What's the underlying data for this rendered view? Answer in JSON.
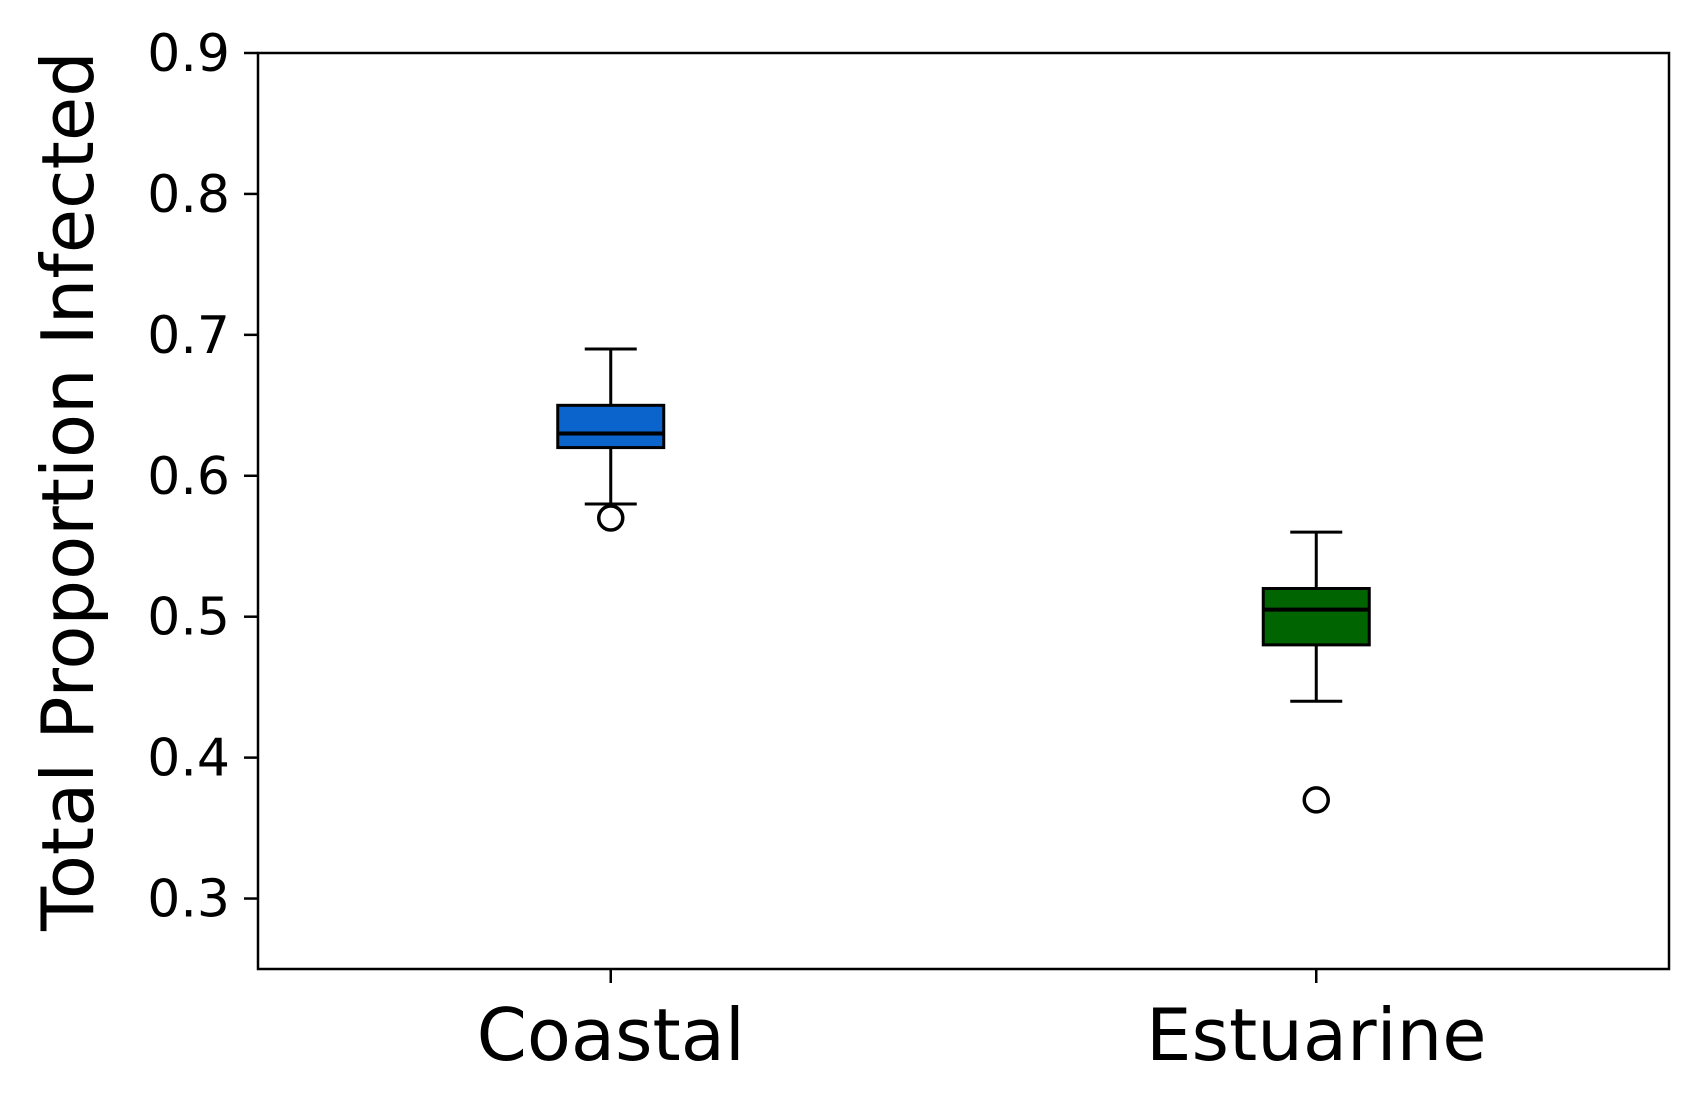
{
  "chart_data": {
    "type": "box",
    "title": "",
    "xlabel": "",
    "ylabel": "Total Proportion Infected",
    "ylim": [
      0.25,
      0.9
    ],
    "yticks": [
      0.3,
      0.4,
      0.5,
      0.6,
      0.7,
      0.8,
      0.9
    ],
    "ytick_labels": [
      "0.3",
      "0.4",
      "0.5",
      "0.6",
      "0.7",
      "0.8",
      "0.9"
    ],
    "grid": false,
    "categories": [
      "Coastal",
      "Estuarine"
    ],
    "boxes": [
      {
        "category": "Coastal",
        "whisker_low": 0.58,
        "q1": 0.62,
        "median": 0.63,
        "q3": 0.65,
        "whisker_high": 0.69,
        "outliers": [
          0.57
        ],
        "color": "#0A64CC"
      },
      {
        "category": "Estuarine",
        "whisker_low": 0.44,
        "q1": 0.48,
        "median": 0.505,
        "q3": 0.52,
        "whisker_high": 0.56,
        "outliers": [
          0.37
        ],
        "color": "#006400"
      }
    ]
  }
}
